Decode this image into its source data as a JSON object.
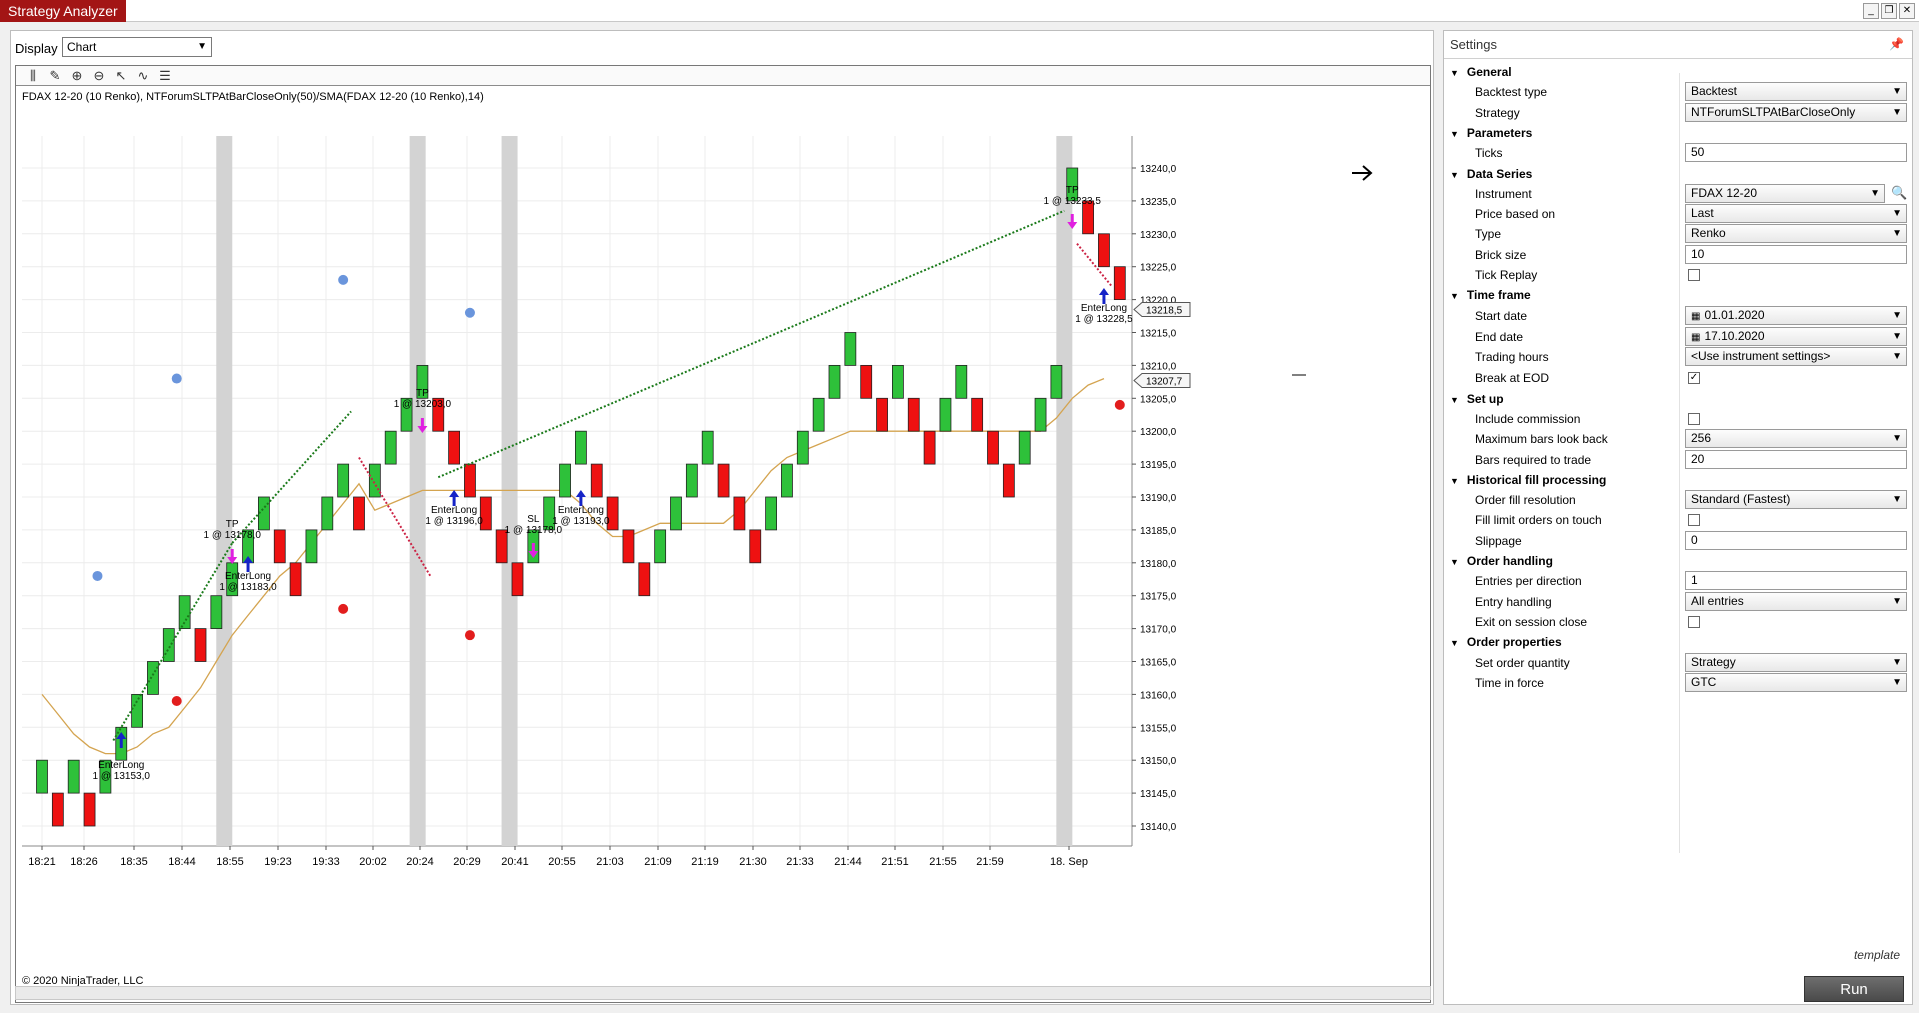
{
  "app": {
    "title": "Strategy Analyzer"
  },
  "display": {
    "label": "Display",
    "value": "Chart"
  },
  "chart": {
    "header": "FDAX 12-20 (10 Renko), NTForumSLTPAtBarCloseOnly(50)/SMA(FDAX 12-20 (10 Renko),14)",
    "copyright": "© 2020 NinjaTrader, LLC",
    "price_flags": [
      "13218,5",
      "13207,7"
    ],
    "time_labels": [
      "18:21",
      "18:26",
      "18:35",
      "18:44",
      "18:55",
      "19:23",
      "19:33",
      "20:02",
      "20:24",
      "20:29",
      "20:41",
      "20:55",
      "21:03",
      "21:09",
      "21:19",
      "21:30",
      "21:33",
      "21:44",
      "21:51",
      "21:55",
      "21:59",
      "18. Sep"
    ],
    "price_labels": [
      "13240,0",
      "13235,0",
      "13230,0",
      "13225,0",
      "13220,0",
      "13215,0",
      "13210,0",
      "13205,0",
      "13200,0",
      "13195,0",
      "13190,0",
      "13185,0",
      "13180,0",
      "13175,0",
      "13170,0",
      "13165,0",
      "13160,0",
      "13155,0",
      "13150,0",
      "13145,0",
      "13140,0"
    ],
    "annotations": [
      {
        "label": "EnterLong",
        "price": "1 @ 13153,0"
      },
      {
        "label": "TP",
        "price": "1 @ 13178,0"
      },
      {
        "label": "EnterLong",
        "price": "1 @ 13183,0"
      },
      {
        "label": "TP",
        "price": "1 @ 13203,0"
      },
      {
        "label": "EnterLong",
        "price": "1 @ 13196,0"
      },
      {
        "label": "SL",
        "price": "1 @ 13178,0"
      },
      {
        "label": "EnterLong",
        "price": "1 @ 13193,0"
      },
      {
        "label": "TP",
        "price": "1 @ 13233,5"
      },
      {
        "label": "EnterLong",
        "price": "1 @ 13228,5"
      }
    ]
  },
  "chart_data": {
    "type": "candlestick",
    "instrument": "FDAX 12-20 (10 Renko)",
    "ylim": [
      13140,
      13240
    ],
    "bricks": [
      {
        "open": 13145,
        "close": 13150
      },
      {
        "open": 13145,
        "close": 13140
      },
      {
        "open": 13145,
        "close": 13150
      },
      {
        "open": 13145,
        "close": 13140
      },
      {
        "open": 13145,
        "close": 13150
      },
      {
        "open": 13150,
        "close": 13155
      },
      {
        "open": 13155,
        "close": 13160
      },
      {
        "open": 13160,
        "close": 13165
      },
      {
        "open": 13165,
        "close": 13170
      },
      {
        "open": 13170,
        "close": 13175
      },
      {
        "open": 13170,
        "close": 13165
      },
      {
        "open": 13170,
        "close": 13175
      },
      {
        "open": 13175,
        "close": 13180
      },
      {
        "open": 13180,
        "close": 13185
      },
      {
        "open": 13185,
        "close": 13190
      },
      {
        "open": 13185,
        "close": 13180
      },
      {
        "open": 13180,
        "close": 13175
      },
      {
        "open": 13180,
        "close": 13185
      },
      {
        "open": 13185,
        "close": 13190
      },
      {
        "open": 13190,
        "close": 13195
      },
      {
        "open": 13190,
        "close": 13185
      },
      {
        "open": 13190,
        "close": 13195
      },
      {
        "open": 13195,
        "close": 13200
      },
      {
        "open": 13200,
        "close": 13205
      },
      {
        "open": 13205,
        "close": 13210
      },
      {
        "open": 13205,
        "close": 13200
      },
      {
        "open": 13200,
        "close": 13195
      },
      {
        "open": 13195,
        "close": 13190
      },
      {
        "open": 13190,
        "close": 13185
      },
      {
        "open": 13185,
        "close": 13180
      },
      {
        "open": 13180,
        "close": 13175
      },
      {
        "open": 13180,
        "close": 13185
      },
      {
        "open": 13185,
        "close": 13190
      },
      {
        "open": 13190,
        "close": 13195
      },
      {
        "open": 13195,
        "close": 13200
      },
      {
        "open": 13195,
        "close": 13190
      },
      {
        "open": 13190,
        "close": 13185
      },
      {
        "open": 13185,
        "close": 13180
      },
      {
        "open": 13180,
        "close": 13175
      },
      {
        "open": 13180,
        "close": 13185
      },
      {
        "open": 13185,
        "close": 13190
      },
      {
        "open": 13190,
        "close": 13195
      },
      {
        "open": 13195,
        "close": 13200
      },
      {
        "open": 13195,
        "close": 13190
      },
      {
        "open": 13190,
        "close": 13185
      },
      {
        "open": 13185,
        "close": 13180
      },
      {
        "open": 13185,
        "close": 13190
      },
      {
        "open": 13190,
        "close": 13195
      },
      {
        "open": 13195,
        "close": 13200
      },
      {
        "open": 13200,
        "close": 13205
      },
      {
        "open": 13205,
        "close": 13210
      },
      {
        "open": 13210,
        "close": 13215
      },
      {
        "open": 13210,
        "close": 13205
      },
      {
        "open": 13205,
        "close": 13200
      },
      {
        "open": 13205,
        "close": 13210
      },
      {
        "open": 13205,
        "close": 13200
      },
      {
        "open": 13200,
        "close": 13195
      },
      {
        "open": 13200,
        "close": 13205
      },
      {
        "open": 13205,
        "close": 13210
      },
      {
        "open": 13205,
        "close": 13200
      },
      {
        "open": 13200,
        "close": 13195
      },
      {
        "open": 13195,
        "close": 13190
      },
      {
        "open": 13195,
        "close": 13200
      },
      {
        "open": 13200,
        "close": 13205
      },
      {
        "open": 13205,
        "close": 13210
      },
      {
        "open": 13235,
        "close": 13240
      },
      {
        "open": 13235,
        "close": 13230
      },
      {
        "open": 13230,
        "close": 13225
      },
      {
        "open": 13225,
        "close": 13220
      }
    ],
    "sma14": [
      13160,
      13157,
      13154,
      13152,
      13151,
      13151,
      13152,
      13154,
      13155,
      13158,
      13161,
      13165,
      13169,
      13172,
      13175,
      13178,
      13180,
      13183,
      13186,
      13189,
      13192,
      13188,
      13189,
      13190,
      13191,
      13191,
      13191,
      13191,
      13191,
      13191,
      13191,
      13191,
      13191,
      13191,
      13189,
      13186,
      13184,
      13184,
      13185,
      13186,
      13186,
      13186,
      13186,
      13186,
      13188,
      13191,
      13194,
      13196,
      13197,
      13198,
      13199,
      13200,
      13200,
      13200,
      13200,
      13200,
      13200,
      13200,
      13200,
      13200,
      13200,
      13200,
      13200,
      13200,
      13202,
      13205,
      13207,
      13208
    ],
    "dots": [
      {
        "x": 3.5,
        "price": 13178,
        "color": "blue"
      },
      {
        "x": 8.5,
        "price": 13208,
        "color": "blue"
      },
      {
        "x": 8.5,
        "price": 13159,
        "color": "red"
      },
      {
        "x": 19,
        "price": 13223,
        "color": "blue"
      },
      {
        "x": 19,
        "price": 13173,
        "color": "red"
      },
      {
        "x": 27,
        "price": 13218,
        "color": "blue"
      },
      {
        "x": 27,
        "price": 13169,
        "color": "red"
      },
      {
        "x": 68,
        "price": 13204,
        "color": "red"
      }
    ],
    "trade_lines": [
      {
        "from": [
          4.5,
          13153
        ],
        "to": [
          12,
          13183
        ],
        "color": "green"
      },
      {
        "from": [
          12,
          13183
        ],
        "to": [
          19.5,
          13203
        ],
        "color": "green"
      },
      {
        "from": [
          20,
          13196
        ],
        "to": [
          24.5,
          13178
        ],
        "color": "red"
      },
      {
        "from": [
          25,
          13193
        ],
        "to": [
          64.5,
          13233.5
        ],
        "color": "green"
      },
      {
        "from": [
          65.3,
          13228.5
        ],
        "to": [
          67.5,
          13222
        ],
        "color": "red"
      }
    ],
    "session_breaks": [
      11.5,
      23.7,
      29.5,
      64.5
    ]
  },
  "settings": {
    "title": "Settings",
    "template_label": "template",
    "run_label": "Run",
    "rows": [
      {
        "type": "cat",
        "label": "General"
      },
      {
        "type": "select",
        "label": "Backtest type",
        "value": "Backtest"
      },
      {
        "type": "select",
        "label": "Strategy",
        "value": "NTForumSLTPAtBarCloseOnly"
      },
      {
        "type": "cat",
        "label": "Parameters"
      },
      {
        "type": "text",
        "label": "Ticks",
        "value": "50"
      },
      {
        "type": "cat",
        "label": "Data Series"
      },
      {
        "type": "select",
        "label": "Instrument",
        "value": "FDAX 12-20",
        "search": true
      },
      {
        "type": "select",
        "label": "Price based on",
        "value": "Last"
      },
      {
        "type": "select",
        "label": "Type",
        "value": "Renko"
      },
      {
        "type": "text",
        "label": "Brick size",
        "value": "10"
      },
      {
        "type": "check",
        "label": "Tick Replay",
        "checked": false
      },
      {
        "type": "cat",
        "label": "Time frame"
      },
      {
        "type": "date",
        "label": "Start date",
        "value": "01.01.2020"
      },
      {
        "type": "date",
        "label": "End date",
        "value": "17.10.2020"
      },
      {
        "type": "select",
        "label": "Trading hours",
        "value": "<Use instrument settings>"
      },
      {
        "type": "check",
        "label": "Break at EOD",
        "checked": true
      },
      {
        "type": "cat",
        "label": "Set up"
      },
      {
        "type": "check",
        "label": "Include commission",
        "checked": false
      },
      {
        "type": "select",
        "label": "Maximum bars look back",
        "value": "256"
      },
      {
        "type": "text",
        "label": "Bars required to trade",
        "value": "20"
      },
      {
        "type": "cat",
        "label": "Historical fill processing"
      },
      {
        "type": "select",
        "label": "Order fill resolution",
        "value": "Standard (Fastest)"
      },
      {
        "type": "check",
        "label": "Fill limit orders on touch",
        "checked": false
      },
      {
        "type": "text",
        "label": "Slippage",
        "value": "0"
      },
      {
        "type": "cat",
        "label": "Order handling"
      },
      {
        "type": "text",
        "label": "Entries per direction",
        "value": "1"
      },
      {
        "type": "select",
        "label": "Entry handling",
        "value": "All entries"
      },
      {
        "type": "check",
        "label": "Exit on session close",
        "checked": false
      },
      {
        "type": "cat",
        "label": "Order properties"
      },
      {
        "type": "select",
        "label": "Set order quantity",
        "value": "Strategy"
      },
      {
        "type": "select",
        "label": "Time in force",
        "value": "GTC"
      }
    ]
  }
}
